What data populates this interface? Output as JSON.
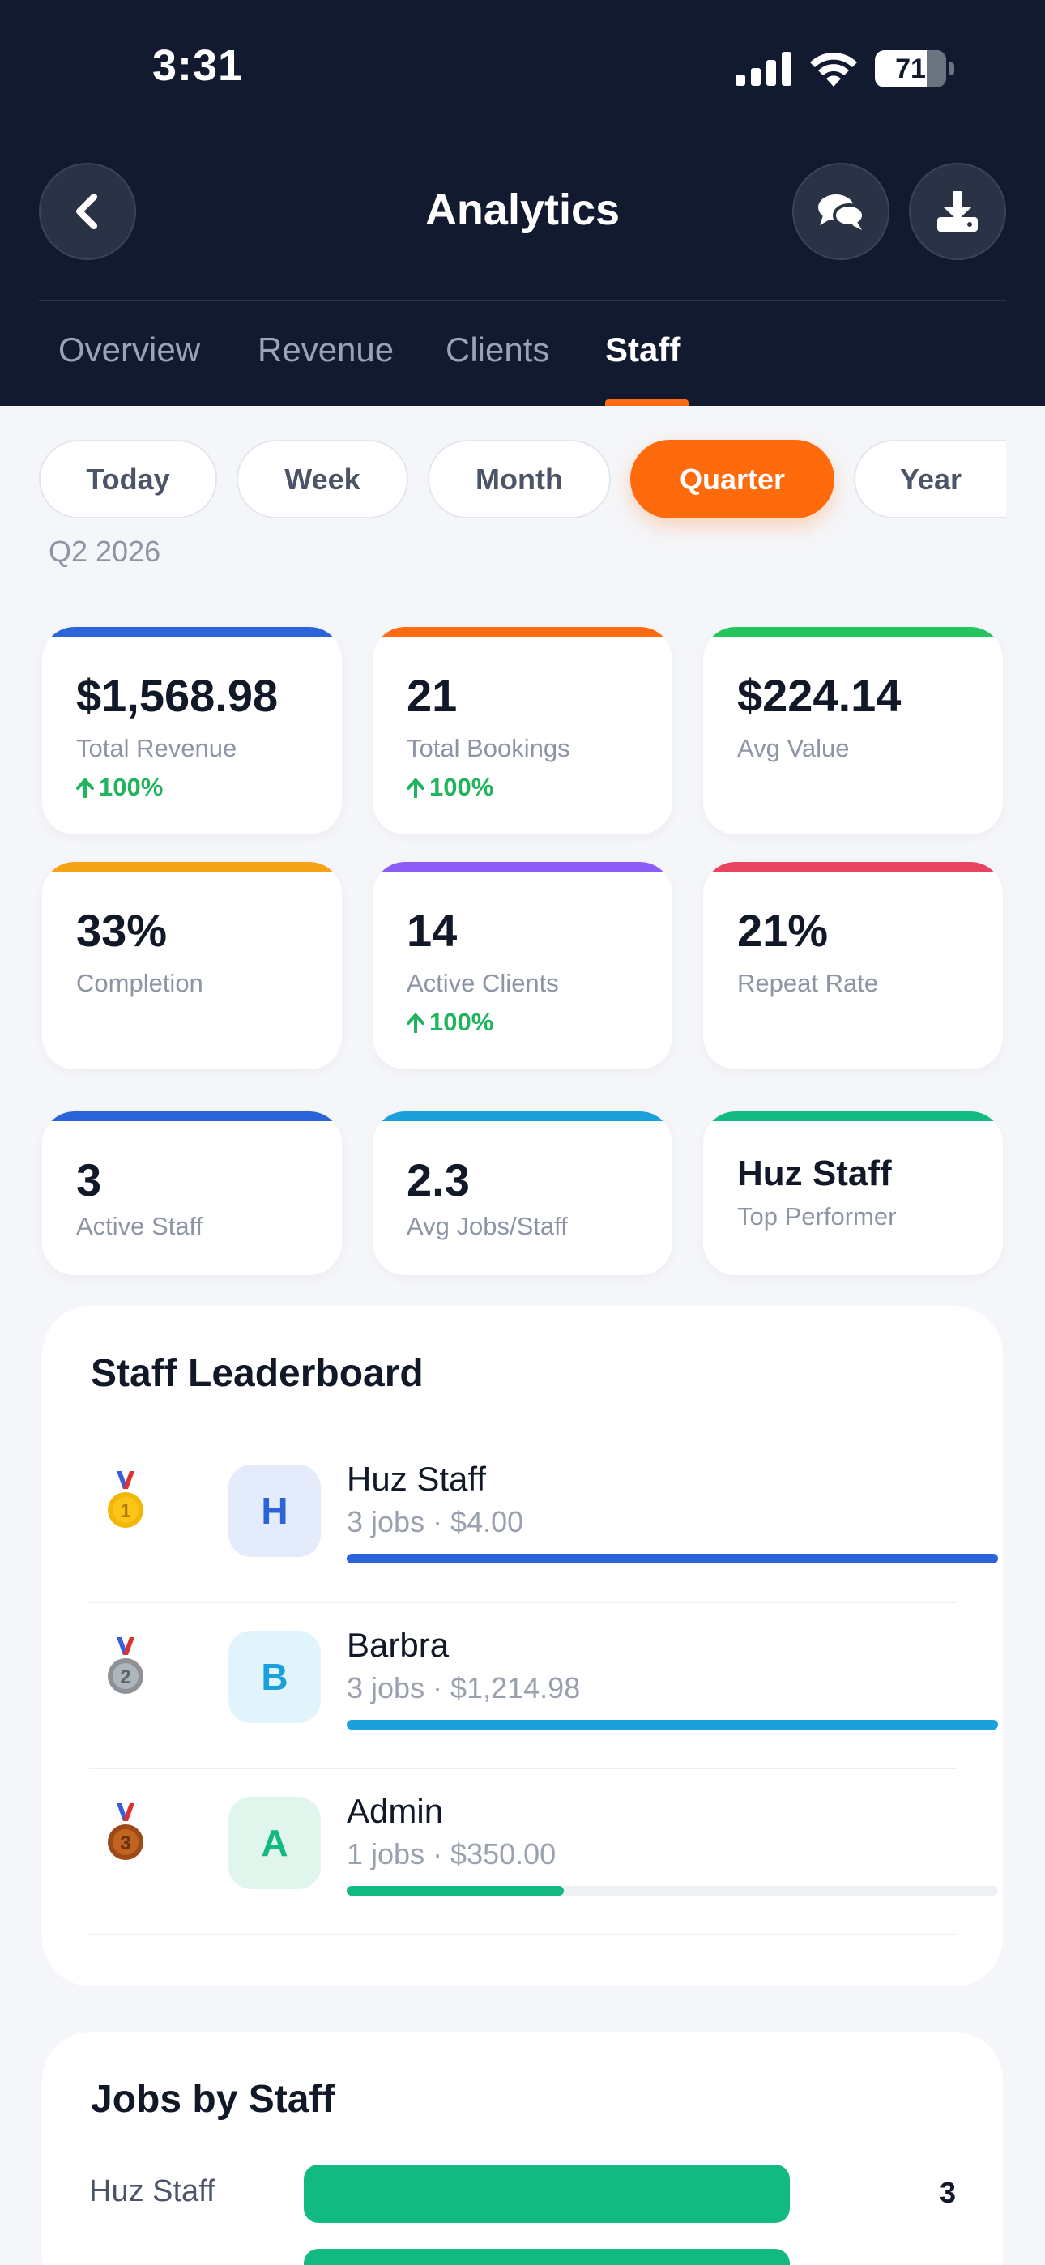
{
  "status_bar": {
    "time": "3:31",
    "battery": "71"
  },
  "header": {
    "title": "Analytics"
  },
  "tabs": [
    {
      "label": "Overview"
    },
    {
      "label": "Revenue"
    },
    {
      "label": "Clients"
    },
    {
      "label": "Staff"
    }
  ],
  "active_tab": "Staff",
  "periods": [
    {
      "label": "Today"
    },
    {
      "label": "Week"
    },
    {
      "label": "Month"
    },
    {
      "label": "Quarter"
    },
    {
      "label": "Year"
    }
  ],
  "active_period": "Quarter",
  "period_label": "Q2 2026",
  "colors": {
    "accent": "#ff6a0d",
    "header_bg": "#111a2e",
    "positive": "#22b35e",
    "blue": "#2b63d9",
    "orange": "#ff6a13",
    "green": "#22c55e",
    "amber": "#f5a316",
    "purple": "#8b5cf6",
    "red": "#e9445f",
    "sky": "#1aa1dc",
    "teal": "#12b981"
  },
  "stats": {
    "total_revenue": {
      "value": "$1,568.98",
      "label": "Total Revenue",
      "trend": "100%"
    },
    "total_bookings": {
      "value": "21",
      "label": "Total Bookings",
      "trend": "100%"
    },
    "avg_value": {
      "value": "$224.14",
      "label": "Avg Value"
    },
    "completion": {
      "value": "33%",
      "label": "Completion"
    },
    "active_clients": {
      "value": "14",
      "label": "Active Clients",
      "trend": "100%"
    },
    "repeat_rate": {
      "value": "21%",
      "label": "Repeat Rate"
    },
    "active_staff": {
      "value": "3",
      "label": "Active Staff"
    },
    "avg_jobs_staff": {
      "value": "2.3",
      "label": "Avg Jobs/Staff"
    },
    "top_performer": {
      "value": "Huz Staff",
      "label": "Top Performer"
    }
  },
  "leaderboard": {
    "title": "Staff Leaderboard",
    "rows": [
      {
        "rank": "1",
        "initial": "H",
        "name": "Huz Staff",
        "sub": "3 jobs · $4.00",
        "progress": 1.0
      },
      {
        "rank": "2",
        "initial": "B",
        "name": "Barbra",
        "sub": "3 jobs · $1,214.98",
        "progress": 1.0
      },
      {
        "rank": "3",
        "initial": "A",
        "name": "Admin",
        "sub": "1 jobs · $350.00",
        "progress": 0.333
      }
    ]
  },
  "jobs_by_staff": {
    "title": "Jobs by Staff",
    "rows": [
      {
        "name": "Huz Staff",
        "value": "3"
      }
    ]
  }
}
